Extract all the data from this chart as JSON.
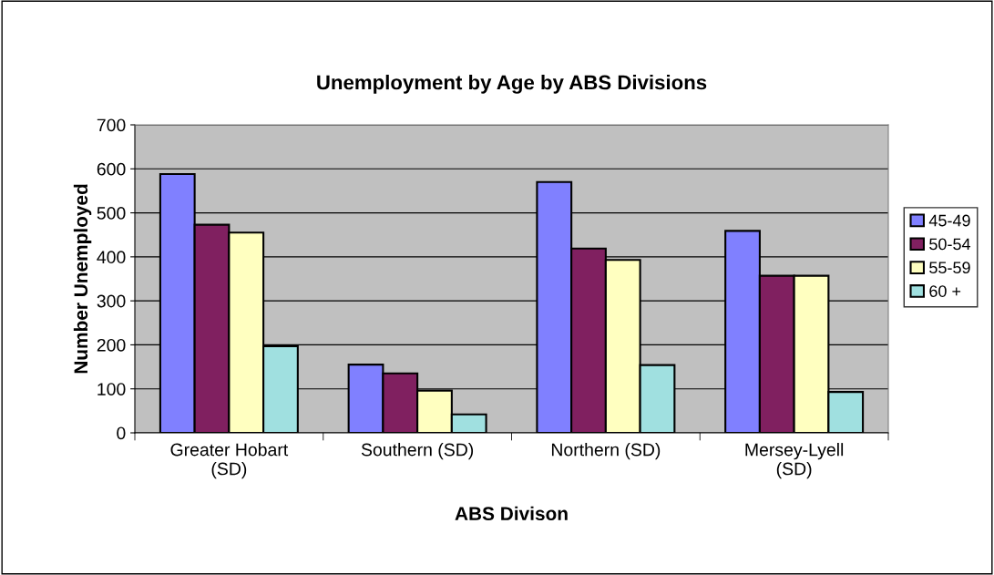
{
  "chart_data": {
    "type": "bar",
    "title": "Unemployment by Age by ABS Divisions",
    "xlabel": "ABS Divison",
    "ylabel": "Number Unemployed",
    "categories": [
      "Greater Hobart\n(SD)",
      "Southern (SD)",
      "Northern (SD)",
      "Mersey-Lyell\n(SD)"
    ],
    "series": [
      {
        "name": "45-49",
        "color": "#8080ff",
        "values": [
          588,
          155,
          570,
          459
        ]
      },
      {
        "name": "50-54",
        "color": "#802060",
        "values": [
          473,
          135,
          419,
          357
        ]
      },
      {
        "name": "55-59",
        "color": "#ffffc0",
        "values": [
          455,
          96,
          393,
          357
        ]
      },
      {
        "name": "60 +",
        "color": "#a0e0e0",
        "values": [
          197,
          42,
          154,
          93
        ]
      }
    ],
    "ylim": [
      0,
      700
    ],
    "yticks": [
      0,
      100,
      200,
      300,
      400,
      500,
      600,
      700
    ],
    "grid": "y",
    "legend": "right"
  }
}
